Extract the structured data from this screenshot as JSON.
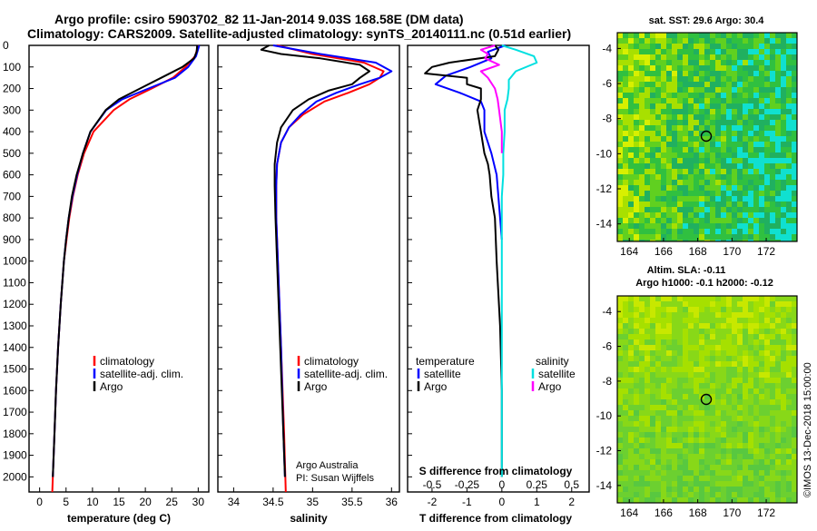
{
  "header": {
    "line1": "Argo profile: csiro 5903702_82 11-Jan-2014 9.03S 168.58E (DM data)",
    "line2": "Climatology: CARS2009. Satellite-adjusted climatology: synTS_20140111.nc (0.51d earlier)"
  },
  "colors": {
    "climatology": "#ff0000",
    "satellite": "#0000ff",
    "argo": "#000000",
    "sat_salinity": "#00e0e0",
    "argo_salinity_diff": "#ff00ff"
  },
  "depth_ticks": [
    "0",
    "100",
    "200",
    "300",
    "400",
    "500",
    "600",
    "700",
    "800",
    "900",
    "1000",
    "1100",
    "1200",
    "1300",
    "1400",
    "1500",
    "1600",
    "1700",
    "1800",
    "1900",
    "2000"
  ],
  "chart_data": [
    {
      "type": "line",
      "id": "temperature",
      "xlabel": "temperature (deg C)",
      "ylabel": "",
      "xlim": [
        -2,
        32
      ],
      "ylim": [
        2070,
        0
      ],
      "x_ticks": [
        "0",
        "5",
        "10",
        "15",
        "20",
        "25",
        "30"
      ],
      "x_tick_values": [
        0,
        5,
        10,
        15,
        20,
        25,
        30
      ],
      "legend": [
        "climatology",
        "satellite-adj. clim.",
        "Argo"
      ],
      "series": [
        {
          "name": "climatology",
          "color": "#ff0000",
          "depth": [
            0,
            50,
            100,
            150,
            200,
            250,
            300,
            400,
            500,
            600,
            700,
            800,
            900,
            1000,
            1200,
            1400,
            1600,
            1800,
            2000,
            2070
          ],
          "values": [
            30.0,
            29.4,
            27.6,
            25.2,
            21.2,
            17.0,
            14.0,
            10.2,
            8.4,
            7.2,
            6.3,
            5.6,
            5.1,
            4.6,
            4.0,
            3.5,
            3.1,
            2.8,
            2.5,
            2.4
          ]
        },
        {
          "name": "satellite-adj. clim.",
          "color": "#0000ff",
          "depth": [
            0,
            50,
            100,
            150,
            200,
            250,
            300,
            400,
            500,
            600,
            700,
            800,
            900,
            1000,
            1200,
            1400,
            1600,
            1800,
            2000
          ],
          "values": [
            30.2,
            29.6,
            28.1,
            25.6,
            20.6,
            15.6,
            12.6,
            9.6,
            8.2,
            7.1,
            6.2,
            5.5,
            5.0,
            4.6,
            4.0,
            3.5,
            3.1,
            2.8,
            2.5
          ]
        },
        {
          "name": "Argo",
          "color": "#000000",
          "depth": [
            0,
            30,
            60,
            100,
            150,
            200,
            250,
            300,
            400,
            500,
            600,
            700,
            800,
            900,
            1000,
            1200,
            1400,
            1600,
            1800,
            2000
          ],
          "values": [
            29.8,
            29.7,
            29.2,
            27.0,
            23.0,
            19.0,
            15.0,
            12.5,
            9.6,
            8.2,
            7.0,
            6.1,
            5.5,
            5.0,
            4.6,
            4.0,
            3.5,
            3.1,
            2.8,
            2.5
          ]
        }
      ]
    },
    {
      "type": "line",
      "id": "salinity",
      "xlabel": "salinity",
      "ylabel": "",
      "xlim": [
        33.8,
        36.1
      ],
      "ylim": [
        2070,
        0
      ],
      "x_ticks": [
        "34",
        "34.5",
        "35",
        "35.5",
        "36"
      ],
      "x_tick_values": [
        34,
        34.5,
        35,
        35.5,
        36
      ],
      "legend": [
        "climatology",
        "satellite-adj. clim.",
        "Argo"
      ],
      "annotation": [
        "Argo Australia",
        "PI: Susan Wijffels"
      ],
      "series": [
        {
          "name": "climatology",
          "color": "#ff0000",
          "depth": [
            0,
            40,
            80,
            120,
            150,
            180,
            220,
            260,
            320,
            380,
            450,
            550,
            650,
            800,
            1000,
            1400,
            1800,
            2070
          ],
          "values": [
            34.55,
            35.0,
            35.65,
            35.9,
            35.85,
            35.72,
            35.45,
            35.15,
            34.88,
            34.7,
            34.6,
            34.55,
            34.54,
            34.54,
            34.56,
            34.6,
            34.64,
            34.66
          ]
        },
        {
          "name": "satellite-adj. clim.",
          "color": "#0000ff",
          "depth": [
            0,
            40,
            80,
            120,
            150,
            180,
            220,
            260,
            320,
            380,
            450,
            550,
            650,
            800,
            1000,
            1400,
            1800,
            2000
          ],
          "values": [
            34.5,
            35.1,
            35.8,
            36.0,
            35.85,
            35.6,
            35.3,
            35.05,
            34.85,
            34.7,
            34.6,
            34.55,
            34.54,
            34.54,
            34.56,
            34.6,
            34.63,
            34.65
          ]
        },
        {
          "name": "Argo",
          "color": "#000000",
          "depth": [
            0,
            20,
            40,
            60,
            90,
            120,
            150,
            180,
            210,
            250,
            300,
            380,
            450,
            550,
            650,
            800,
            1000,
            1400,
            1800,
            2000
          ],
          "values": [
            34.45,
            34.35,
            34.6,
            35.1,
            35.6,
            35.72,
            35.6,
            35.5,
            35.2,
            34.95,
            34.75,
            34.6,
            34.55,
            34.52,
            34.52,
            34.53,
            34.55,
            34.59,
            34.63,
            34.65
          ]
        }
      ]
    },
    {
      "type": "line",
      "id": "difference",
      "xlabel": "T difference from climatology",
      "ylabel": "",
      "xlim": [
        -2.7,
        2.5
      ],
      "ylim": [
        2070,
        0
      ],
      "x_ticks": [
        "-2",
        "-1",
        "0",
        "1",
        "2"
      ],
      "x_tick_values": [
        -2,
        -1,
        0,
        1,
        2
      ],
      "s_axis_title": "S difference from climatology",
      "s_ticks": [
        "-0.5",
        "-0.25",
        "0",
        "0.25",
        "0.5"
      ],
      "s_tick_values": [
        -0.5,
        -0.25,
        0,
        0.25,
        0.5
      ],
      "legend_left_title": "temperature",
      "legend_left": [
        "satellite",
        "Argo"
      ],
      "legend_right_title": "salinity",
      "legend_right": [
        "satellite",
        "Argo"
      ],
      "series": [
        {
          "name": "satellite",
          "quantity": "temperature",
          "color": "#0000ff",
          "depth": [
            0,
            30,
            60,
            100,
            140,
            180,
            220,
            260,
            300,
            400,
            500,
            600,
            700,
            800,
            900
          ],
          "values": [
            0.1,
            -0.4,
            -0.3,
            -0.9,
            -1.6,
            -1.9,
            -1.2,
            -0.6,
            -0.5,
            -0.5,
            -0.3,
            -0.15,
            -0.1,
            -0.05,
            0.0
          ]
        },
        {
          "name": "Argo",
          "quantity": "temperature",
          "color": "#000000",
          "depth": [
            0,
            20,
            50,
            80,
            100,
            130,
            150,
            180,
            200,
            250,
            300,
            400,
            500,
            550,
            600,
            700,
            800,
            1000,
            1300,
            1600,
            2000
          ],
          "values": [
            -0.2,
            -0.1,
            -0.2,
            -1.5,
            -2.0,
            -2.2,
            -1.0,
            -1.0,
            -0.6,
            -0.6,
            -0.7,
            -0.6,
            -0.5,
            -0.4,
            -0.35,
            -0.3,
            -0.2,
            -0.15,
            -0.05,
            0.0,
            0.0
          ]
        },
        {
          "name": "satellite",
          "quantity": "salinity",
          "color": "#00e0e0",
          "depth": [
            0,
            20,
            50,
            80,
            120,
            160,
            200,
            250,
            300,
            400,
            500,
            600,
            700,
            900,
            1200,
            1600,
            2000
          ],
          "values": [
            0.0,
            0.1,
            0.23,
            0.25,
            0.1,
            0.05,
            0.05,
            0.04,
            0.02,
            0.02,
            0.01,
            0.01,
            0.0,
            0.0,
            0.0,
            0.0,
            0.0
          ]
        },
        {
          "name": "Argo",
          "quantity": "salinity",
          "color": "#ff00ff",
          "depth": [
            0,
            20,
            40,
            60,
            90,
            120,
            150,
            200,
            250,
            300,
            400,
            500
          ],
          "values": [
            -0.05,
            -0.15,
            -0.1,
            -0.12,
            -0.02,
            -0.15,
            -0.1,
            -0.05,
            -0.03,
            -0.02,
            0.0,
            0.0
          ]
        }
      ]
    }
  ],
  "maps": {
    "sst": {
      "title": "sat. SST: 29.6 Argo: 30.4",
      "y_ticks": [
        "-4",
        "-6",
        "-8",
        "-10",
        "-12",
        "-14"
      ],
      "x_ticks": [
        "164",
        "166",
        "168",
        "170",
        "172"
      ]
    },
    "sla": {
      "title_line1": "Altim. SLA: -0.11",
      "title_line2": "Argo h1000: -0.1 h2000: -0.12",
      "y_ticks": [
        "-4",
        "-6",
        "-8",
        "-10",
        "-12",
        "-14"
      ],
      "x_ticks": [
        "164",
        "166",
        "168",
        "170",
        "172"
      ]
    }
  },
  "footer": {
    "credit": "©IMOS 13-Dec-2018 15:00:00"
  }
}
